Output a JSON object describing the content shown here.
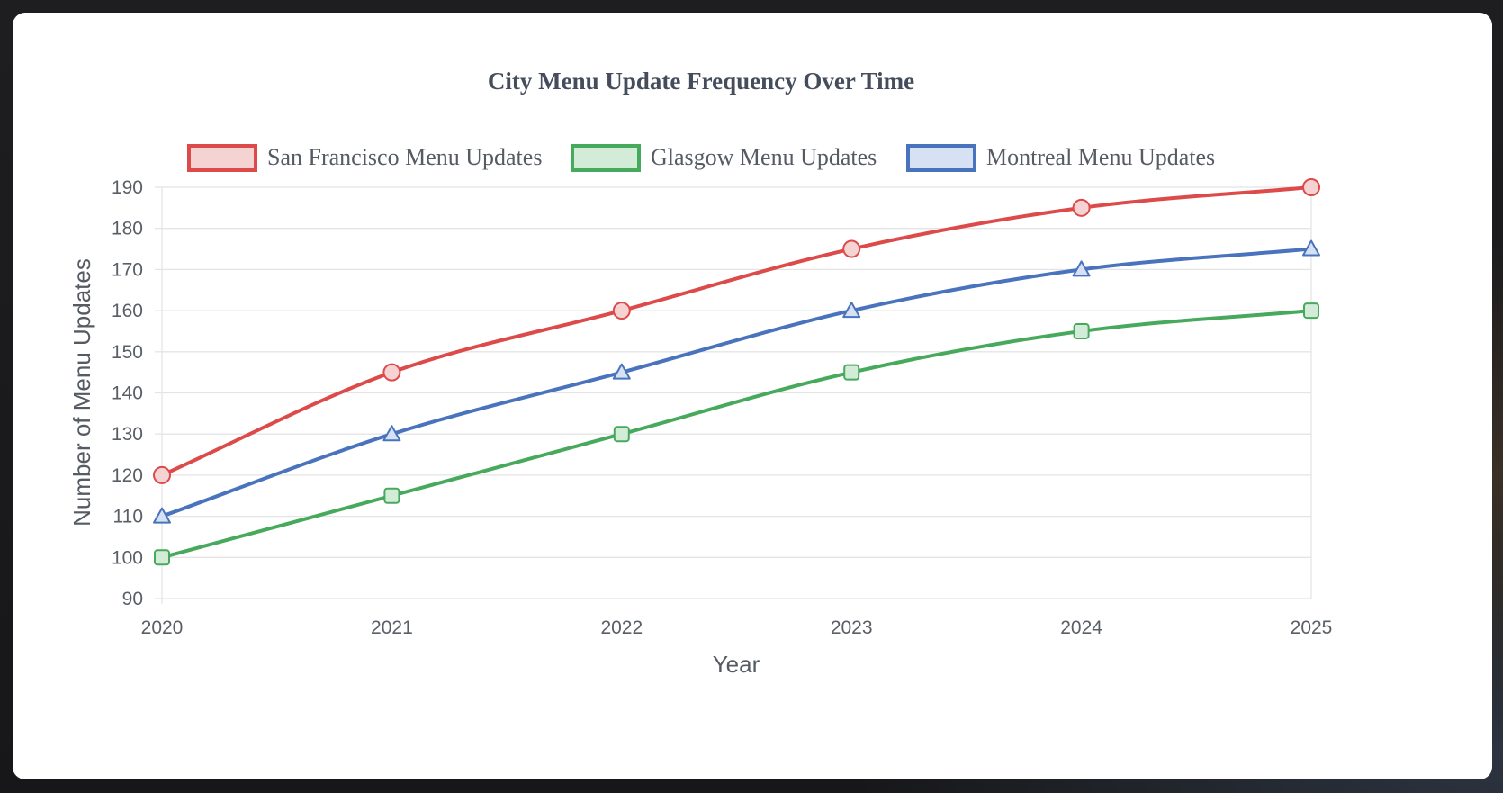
{
  "chart_data": {
    "type": "line",
    "title": "City Menu Update Frequency Over Time",
    "xlabel": "Year",
    "ylabel": "Number of Menu Updates",
    "x": [
      "2020",
      "2021",
      "2022",
      "2023",
      "2024",
      "2025"
    ],
    "ylim": [
      90,
      190
    ],
    "yticks": [
      90,
      100,
      110,
      120,
      130,
      140,
      150,
      160,
      170,
      180,
      190
    ],
    "grid": true,
    "legend_position": "top",
    "series": [
      {
        "name": "San Francisco Menu Updates",
        "values": [
          120,
          145,
          160,
          175,
          185,
          190
        ],
        "color": "#dc4a4a",
        "fill": "#f6d3d3",
        "marker": "circle"
      },
      {
        "name": "Glasgow Menu Updates",
        "values": [
          100,
          115,
          130,
          145,
          155,
          160
        ],
        "color": "#47a95b",
        "fill": "#d3ecd8",
        "marker": "square"
      },
      {
        "name": "Montreal Menu Updates",
        "values": [
          110,
          130,
          145,
          160,
          170,
          175
        ],
        "color": "#4a73bd",
        "fill": "#d6e1f3",
        "marker": "triangle"
      }
    ]
  }
}
